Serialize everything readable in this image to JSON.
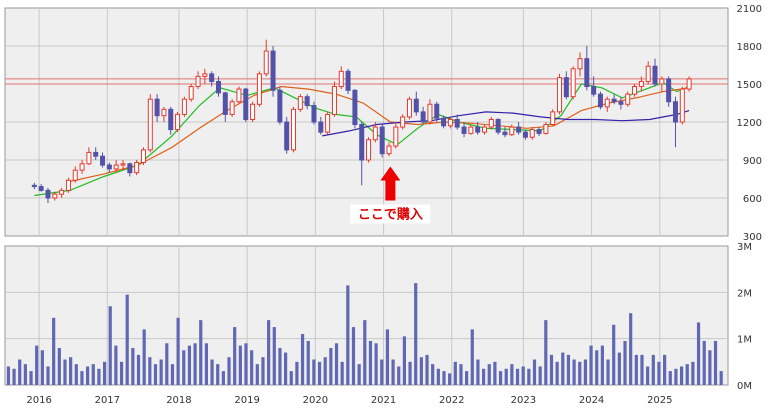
{
  "chart_data": [
    {
      "type": "candlestick",
      "panel": "price",
      "y_axis_side": "right",
      "y_ticks": [
        "2100",
        "1800",
        "1500",
        "1200",
        "900",
        "600",
        "300"
      ],
      "y_tick_values": [
        2100,
        1800,
        1500,
        1200,
        900,
        600,
        300
      ],
      "ylim": [
        300,
        2100
      ],
      "horizontal_lines": [
        1540,
        1500
      ],
      "annotation": {
        "text": "ここで購入",
        "x": 2020.6,
        "y": 880,
        "arrow": "up"
      },
      "ohlc": [
        [
          2015.38,
          700,
          720,
          670,
          690
        ],
        [
          2015.48,
          690,
          710,
          650,
          660
        ],
        [
          2015.58,
          660,
          680,
          560,
          600
        ],
        [
          2015.68,
          600,
          650,
          580,
          630
        ],
        [
          2015.78,
          630,
          680,
          600,
          660
        ],
        [
          2015.88,
          660,
          760,
          640,
          740
        ],
        [
          2015.98,
          740,
          850,
          720,
          820
        ],
        [
          2016.08,
          820,
          900,
          790,
          870
        ],
        [
          2016.18,
          870,
          1000,
          860,
          960
        ],
        [
          2016.28,
          960,
          1000,
          900,
          930
        ],
        [
          2016.38,
          930,
          960,
          840,
          860
        ],
        [
          2016.48,
          860,
          880,
          800,
          830
        ],
        [
          2016.58,
          830,
          900,
          800,
          860
        ],
        [
          2016.68,
          860,
          900,
          820,
          870
        ],
        [
          2016.78,
          870,
          880,
          770,
          800
        ],
        [
          2016.88,
          800,
          900,
          780,
          880
        ],
        [
          2016.98,
          880,
          1000,
          860,
          980
        ],
        [
          2017.08,
          980,
          1420,
          960,
          1380
        ],
        [
          2017.18,
          1380,
          1420,
          1200,
          1250
        ],
        [
          2017.28,
          1250,
          1320,
          1200,
          1300
        ],
        [
          2017.38,
          1300,
          1320,
          1100,
          1140
        ],
        [
          2017.48,
          1140,
          1280,
          1120,
          1260
        ],
        [
          2017.58,
          1260,
          1400,
          1240,
          1380
        ],
        [
          2017.68,
          1380,
          1500,
          1360,
          1480
        ],
        [
          2017.78,
          1480,
          1600,
          1460,
          1560
        ],
        [
          2017.88,
          1560,
          1620,
          1500,
          1580
        ],
        [
          2017.98,
          1580,
          1600,
          1480,
          1520
        ],
        [
          2018.08,
          1520,
          1560,
          1400,
          1430
        ],
        [
          2018.18,
          1430,
          1440,
          1200,
          1260
        ],
        [
          2018.28,
          1260,
          1380,
          1240,
          1360
        ],
        [
          2018.38,
          1360,
          1480,
          1340,
          1460
        ],
        [
          2018.48,
          1460,
          1470,
          1200,
          1220
        ],
        [
          2018.58,
          1220,
          1360,
          1200,
          1340
        ],
        [
          2018.68,
          1340,
          1600,
          1320,
          1580
        ],
        [
          2018.78,
          1580,
          1850,
          1560,
          1760
        ],
        [
          2018.88,
          1760,
          1800,
          1400,
          1450
        ],
        [
          2018.98,
          1450,
          1480,
          1180,
          1200
        ],
        [
          2019.08,
          1200,
          1240,
          950,
          980
        ],
        [
          2019.18,
          980,
          1320,
          960,
          1300
        ],
        [
          2019.28,
          1300,
          1420,
          1280,
          1400
        ],
        [
          2019.38,
          1400,
          1420,
          1300,
          1330
        ],
        [
          2019.48,
          1330,
          1360,
          1180,
          1200
        ],
        [
          2019.58,
          1200,
          1240,
          1100,
          1120
        ],
        [
          2019.68,
          1120,
          1280,
          1100,
          1260
        ],
        [
          2019.78,
          1260,
          1520,
          1240,
          1480
        ],
        [
          2019.88,
          1480,
          1640,
          1460,
          1600
        ],
        [
          2019.98,
          1600,
          1620,
          1420,
          1450
        ],
        [
          2020.08,
          1450,
          1460,
          1150,
          1180
        ],
        [
          2020.18,
          1180,
          1200,
          700,
          900
        ],
        [
          2020.28,
          900,
          1080,
          880,
          1060
        ],
        [
          2020.38,
          1060,
          1200,
          1040,
          1160
        ],
        [
          2020.48,
          1160,
          1180,
          920,
          950
        ],
        [
          2020.58,
          950,
          1040,
          930,
          1010
        ],
        [
          2020.68,
          1010,
          1200,
          990,
          1160
        ],
        [
          2020.78,
          1160,
          1260,
          1140,
          1240
        ],
        [
          2020.88,
          1240,
          1400,
          1220,
          1380
        ],
        [
          2020.98,
          1380,
          1440,
          1250,
          1280
        ],
        [
          2021.08,
          1280,
          1320,
          1180,
          1200
        ],
        [
          2021.18,
          1200,
          1380,
          1180,
          1340
        ],
        [
          2021.28,
          1340,
          1360,
          1200,
          1230
        ],
        [
          2021.38,
          1230,
          1250,
          1150,
          1170
        ],
        [
          2021.48,
          1170,
          1240,
          1150,
          1220
        ],
        [
          2021.58,
          1220,
          1260,
          1140,
          1160
        ],
        [
          2021.68,
          1160,
          1200,
          1080,
          1110
        ],
        [
          2021.78,
          1110,
          1180,
          1100,
          1160
        ],
        [
          2021.88,
          1160,
          1200,
          1100,
          1120
        ],
        [
          2021.98,
          1120,
          1180,
          1100,
          1160
        ],
        [
          2022.08,
          1160,
          1240,
          1140,
          1220
        ],
        [
          2022.18,
          1220,
          1230,
          1100,
          1120
        ],
        [
          2022.28,
          1120,
          1160,
          1080,
          1100
        ],
        [
          2022.38,
          1100,
          1180,
          1090,
          1160
        ],
        [
          2022.48,
          1160,
          1200,
          1100,
          1120
        ],
        [
          2022.58,
          1120,
          1140,
          1060,
          1080
        ],
        [
          2022.68,
          1080,
          1160,
          1060,
          1140
        ],
        [
          2022.78,
          1140,
          1160,
          1090,
          1110
        ],
        [
          2022.88,
          1110,
          1200,
          1100,
          1180
        ],
        [
          2022.98,
          1180,
          1300,
          1170,
          1280
        ],
        [
          2023.08,
          1280,
          1580,
          1260,
          1550
        ],
        [
          2023.18,
          1550,
          1600,
          1380,
          1400
        ],
        [
          2023.28,
          1400,
          1640,
          1380,
          1620
        ],
        [
          2023.38,
          1620,
          1750,
          1560,
          1700
        ],
        [
          2023.48,
          1700,
          1800,
          1450,
          1480
        ],
        [
          2023.58,
          1480,
          1560,
          1400,
          1420
        ],
        [
          2023.68,
          1420,
          1440,
          1300,
          1320
        ],
        [
          2023.78,
          1320,
          1400,
          1280,
          1380
        ],
        [
          2023.88,
          1380,
          1420,
          1340,
          1360
        ],
        [
          2023.98,
          1360,
          1400,
          1300,
          1340
        ],
        [
          2024.08,
          1340,
          1440,
          1320,
          1420
        ],
        [
          2024.18,
          1420,
          1500,
          1400,
          1480
        ],
        [
          2024.28,
          1480,
          1560,
          1440,
          1520
        ],
        [
          2024.38,
          1520,
          1680,
          1500,
          1640
        ],
        [
          2024.48,
          1640,
          1700,
          1480,
          1500
        ],
        [
          2024.58,
          1500,
          1560,
          1440,
          1540
        ],
        [
          2024.68,
          1540,
          1560,
          1320,
          1360
        ],
        [
          2024.78,
          1360,
          1400,
          1000,
          1200
        ],
        [
          2024.88,
          1200,
          1480,
          1180,
          1460
        ],
        [
          2024.98,
          1460,
          1560,
          1440,
          1540
        ]
      ],
      "moving_averages": [
        {
          "color": "#22bb22",
          "points": [
            [
              2015.38,
              620
            ],
            [
              2015.9,
              660
            ],
            [
              2016.4,
              770
            ],
            [
              2016.9,
              860
            ],
            [
              2017.4,
              1090
            ],
            [
              2017.8,
              1330
            ],
            [
              2018.1,
              1470
            ],
            [
              2018.5,
              1410
            ],
            [
              2018.9,
              1470
            ],
            [
              2019.2,
              1390
            ],
            [
              2019.5,
              1310
            ],
            [
              2019.8,
              1260
            ],
            [
              2020.1,
              1240
            ],
            [
              2020.4,
              1100
            ],
            [
              2020.7,
              1020
            ],
            [
              2021.0,
              1150
            ],
            [
              2021.3,
              1260
            ],
            [
              2021.6,
              1200
            ],
            [
              2022.0,
              1150
            ],
            [
              2022.4,
              1140
            ],
            [
              2022.8,
              1130
            ],
            [
              2023.1,
              1250
            ],
            [
              2023.4,
              1500
            ],
            [
              2023.7,
              1470
            ],
            [
              2024.0,
              1390
            ],
            [
              2024.3,
              1450
            ],
            [
              2024.6,
              1510
            ],
            [
              2024.8,
              1440
            ],
            [
              2024.98,
              1480
            ]
          ]
        },
        {
          "color": "#e0601a",
          "points": [
            [
              2015.9,
              730
            ],
            [
              2016.4,
              790
            ],
            [
              2016.9,
              860
            ],
            [
              2017.4,
              1000
            ],
            [
              2017.8,
              1150
            ],
            [
              2018.2,
              1290
            ],
            [
              2018.6,
              1410
            ],
            [
              2019.0,
              1480
            ],
            [
              2019.4,
              1460
            ],
            [
              2019.8,
              1420
            ],
            [
              2020.2,
              1350
            ],
            [
              2020.6,
              1200
            ],
            [
              2021.0,
              1180
            ],
            [
              2021.4,
              1200
            ],
            [
              2021.8,
              1190
            ],
            [
              2022.2,
              1170
            ],
            [
              2022.6,
              1150
            ],
            [
              2023.0,
              1170
            ],
            [
              2023.4,
              1290
            ],
            [
              2023.8,
              1350
            ],
            [
              2024.2,
              1390
            ],
            [
              2024.6,
              1440
            ],
            [
              2024.98,
              1470
            ]
          ]
        },
        {
          "color": "#3322aa",
          "points": [
            [
              2019.6,
              1090
            ],
            [
              2020.0,
              1130
            ],
            [
              2020.4,
              1180
            ],
            [
              2020.8,
              1200
            ],
            [
              2021.2,
              1210
            ],
            [
              2021.6,
              1250
            ],
            [
              2022.0,
              1280
            ],
            [
              2022.4,
              1270
            ],
            [
              2022.8,
              1240
            ],
            [
              2023.2,
              1220
            ],
            [
              2023.6,
              1220
            ],
            [
              2024.0,
              1210
            ],
            [
              2024.4,
              1220
            ],
            [
              2024.8,
              1260
            ],
            [
              2024.98,
              1290
            ]
          ]
        }
      ]
    },
    {
      "type": "bar",
      "panel": "volume",
      "y_axis_side": "right",
      "y_ticks": [
        "3M",
        "2M",
        "1M",
        "0M"
      ],
      "y_tick_values": [
        3,
        2,
        1,
        0
      ],
      "ylim": [
        0,
        3
      ],
      "x_ticks": [
        "2016",
        "2017",
        "2018",
        "2019",
        "2020",
        "2021",
        "2022",
        "2023",
        "2024",
        "2025"
      ],
      "x_tick_values": [
        2015.45,
        2016.45,
        2017.5,
        2018.5,
        2019.5,
        2020.5,
        2021.5,
        2022.55,
        2023.55,
        2024.55
      ],
      "x_range": [
        2014.95,
        2025.55
      ],
      "values": [
        0.4,
        0.35,
        0.55,
        0.45,
        0.3,
        0.85,
        0.75,
        0.4,
        1.45,
        0.8,
        0.55,
        0.6,
        0.45,
        0.3,
        0.4,
        0.45,
        0.35,
        0.5,
        1.7,
        0.85,
        0.5,
        1.95,
        0.8,
        0.65,
        1.2,
        0.6,
        0.45,
        0.55,
        0.9,
        0.45,
        1.45,
        0.75,
        0.85,
        0.9,
        1.4,
        0.9,
        0.55,
        0.45,
        0.3,
        0.6,
        1.25,
        0.85,
        0.9,
        0.75,
        0.45,
        0.6,
        1.4,
        1.25,
        0.8,
        0.7,
        0.3,
        0.5,
        1.1,
        0.95,
        0.55,
        0.5,
        0.6,
        0.8,
        0.9,
        0.5,
        2.15,
        1.25,
        0.45,
        1.4,
        0.95,
        0.9,
        0.55,
        1.2,
        0.55,
        0.4,
        1.05,
        0.5,
        2.2,
        0.6,
        0.65,
        0.45,
        0.35,
        0.3,
        0.25,
        0.5,
        0.45,
        0.3,
        1.2,
        0.55,
        0.35,
        0.45,
        0.5,
        0.3,
        0.35,
        0.45,
        0.35,
        0.4,
        0.35,
        0.55,
        0.4,
        1.4,
        0.65,
        0.5,
        0.7,
        0.65,
        0.55,
        0.5,
        0.55,
        0.85,
        0.75,
        0.85,
        0.55,
        1.3,
        0.7,
        0.95,
        1.55,
        0.65,
        0.65,
        0.4,
        0.65,
        0.5,
        0.65,
        0.3,
        0.35,
        0.4,
        0.45,
        0.5,
        1.35,
        0.95,
        0.75,
        0.95,
        0.3
      ]
    }
  ]
}
